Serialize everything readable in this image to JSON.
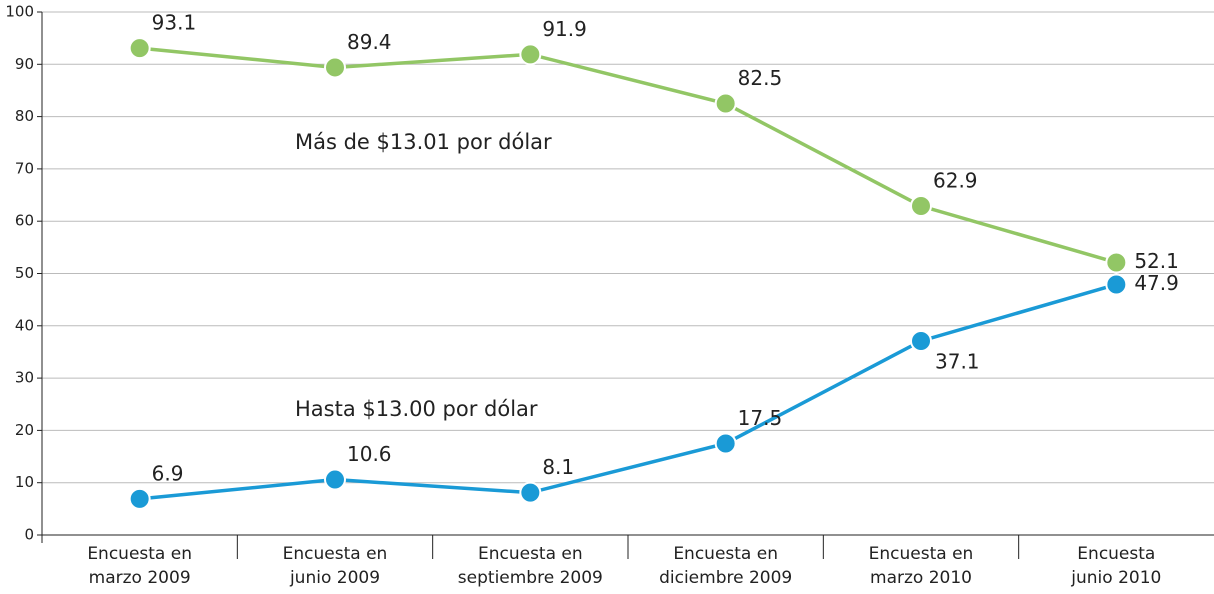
{
  "chart_data": {
    "type": "line",
    "categories": [
      [
        "Encuesta en",
        "marzo 2009"
      ],
      [
        "Encuesta en",
        "junio 2009"
      ],
      [
        "Encuesta en",
        "septiembre 2009"
      ],
      [
        "Encuesta en",
        "diciembre 2009"
      ],
      [
        "Encuesta en",
        "marzo 2010"
      ],
      [
        "Encuesta",
        "junio 2010"
      ]
    ],
    "series": [
      {
        "name": "Más de $13.01 por dólar",
        "color": "#92c665",
        "values": [
          93.1,
          89.4,
          91.9,
          82.5,
          62.9,
          52.1
        ]
      },
      {
        "name": "Hasta $13.00 por dólar",
        "color": "#1a9ad6",
        "values": [
          6.9,
          10.6,
          8.1,
          17.5,
          37.1,
          47.9
        ]
      }
    ],
    "ylim": [
      0,
      100
    ],
    "yticks": [
      0,
      10,
      20,
      30,
      40,
      50,
      60,
      70,
      80,
      90,
      100
    ],
    "grid": true
  }
}
